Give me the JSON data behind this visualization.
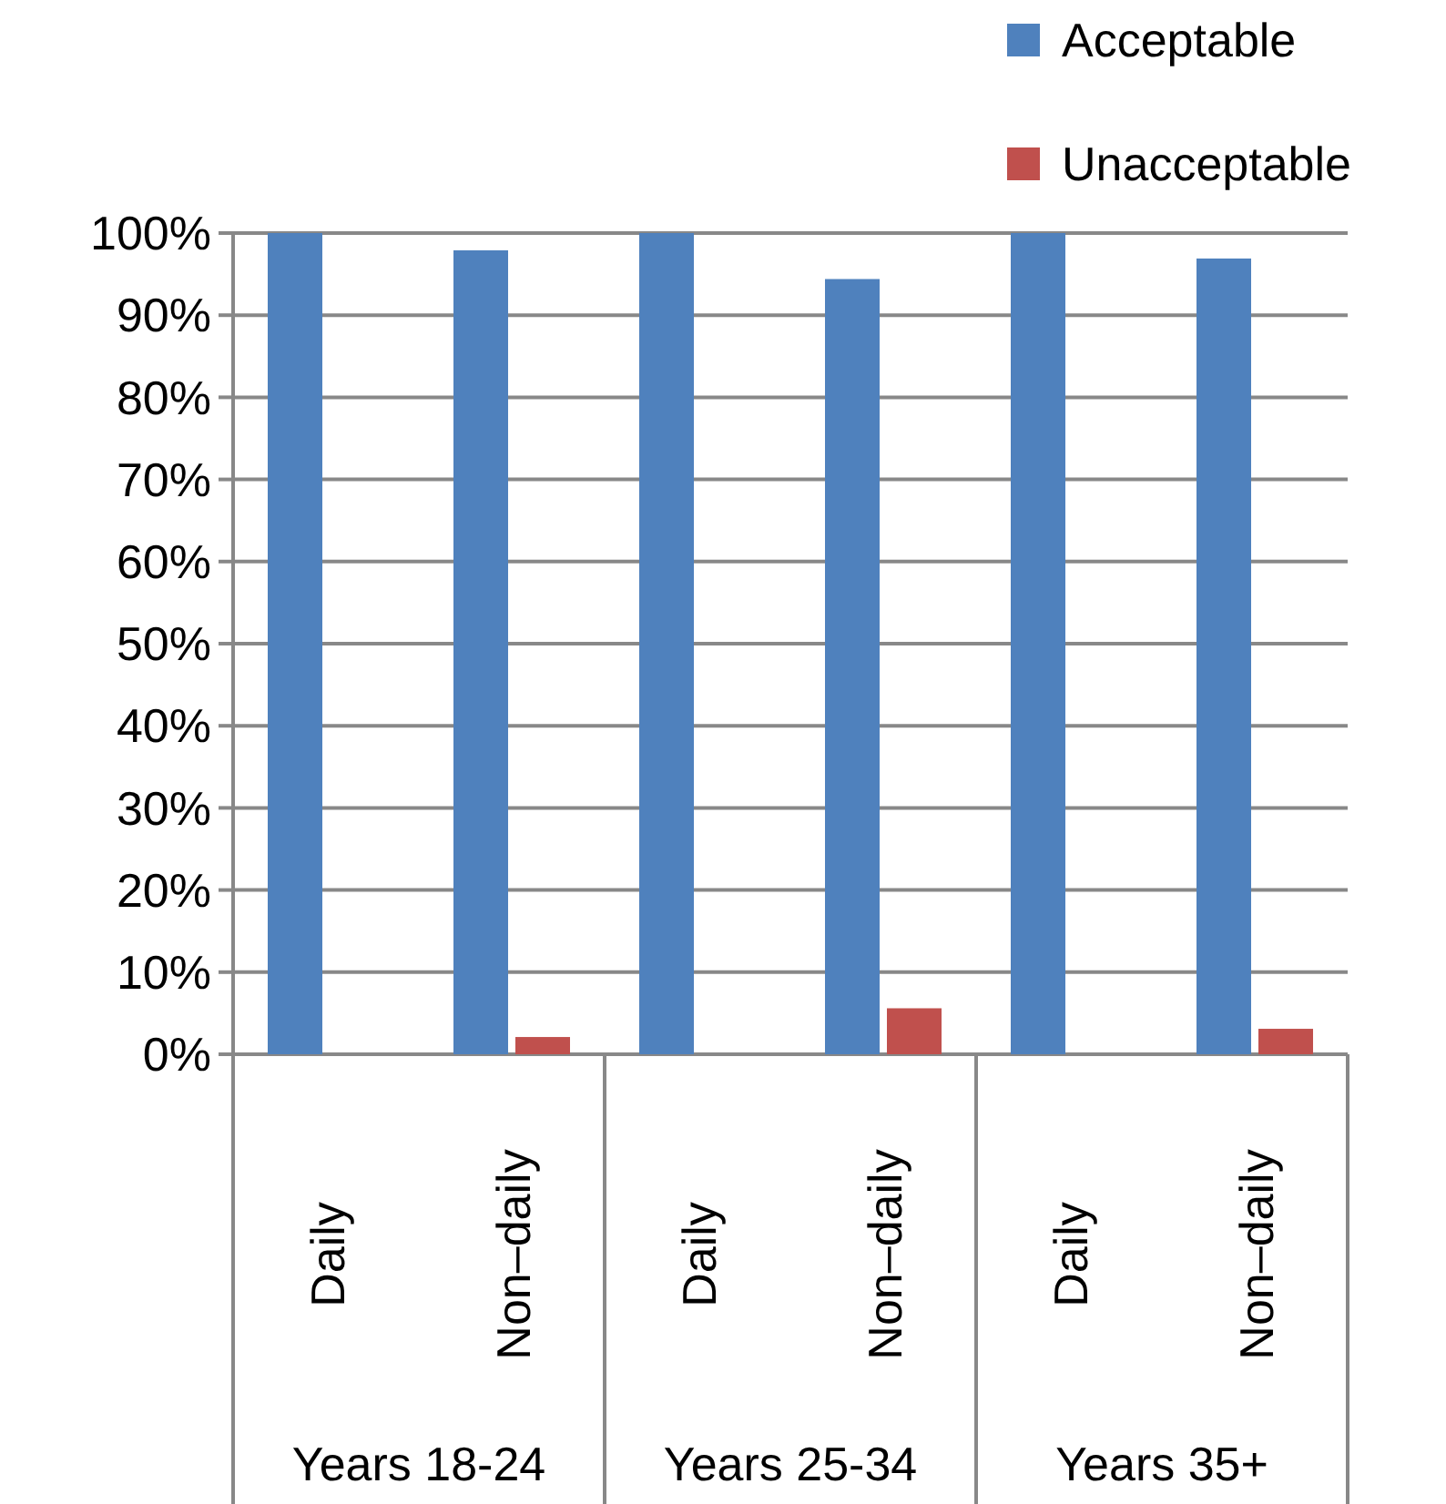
{
  "chart_data": {
    "type": "bar",
    "categories": [
      "Daily",
      "Non–daily",
      "Daily",
      "Non–daily",
      "Daily",
      "Non–daily"
    ],
    "annotations": [
      "Years 18-24",
      "Years 25-34",
      "Years 35+"
    ],
    "series": [
      {
        "name": "Acceptable",
        "color": "#4f81bd",
        "values": [
          100,
          97.9,
          100,
          94.4,
          100,
          96.9
        ]
      },
      {
        "name": "Unacceptable",
        "color": "#c0504d",
        "values": [
          0,
          2.1,
          0,
          5.6,
          0,
          3.1
        ]
      }
    ],
    "ylim": [
      0,
      100
    ],
    "yticks": [
      {
        "value": 0,
        "label": "0%"
      },
      {
        "value": 10,
        "label": "10%"
      },
      {
        "value": 20,
        "label": "20%"
      },
      {
        "value": 30,
        "label": "30%"
      },
      {
        "value": 40,
        "label": "40%"
      },
      {
        "value": 50,
        "label": "50%"
      },
      {
        "value": 60,
        "label": "60%"
      },
      {
        "value": 70,
        "label": "70%"
      },
      {
        "value": 80,
        "label": "80%"
      },
      {
        "value": 90,
        "label": "90%"
      },
      {
        "value": 100,
        "label": "100%"
      }
    ],
    "grid": "y",
    "legend": "top right"
  }
}
